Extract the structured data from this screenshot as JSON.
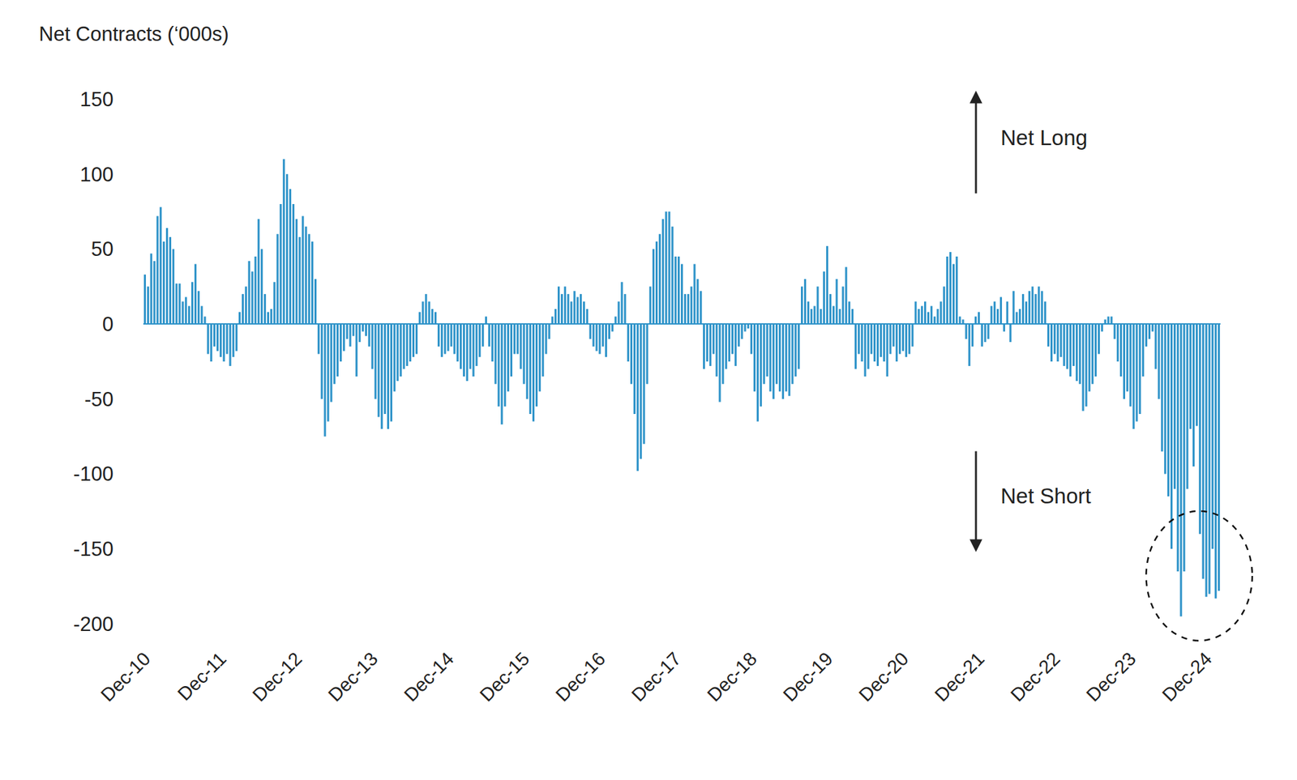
{
  "chart_data": {
    "type": "bar",
    "ylabel": "Net Contracts (‘000s)",
    "annotations": [
      "Net Long",
      "Net Short"
    ],
    "color": "#2e93c9",
    "grid": false,
    "ylim": [
      -200,
      150
    ],
    "yticks": [
      -200,
      -150,
      -100,
      -50,
      0,
      50,
      100,
      150
    ],
    "categories": [
      "Dec-10",
      null,
      null,
      null,
      null,
      null,
      null,
      null,
      null,
      null,
      null,
      null,
      null,
      null,
      null,
      null,
      null,
      null,
      null,
      null,
      null,
      null,
      null,
      null,
      "Dec-11",
      null,
      null,
      null,
      null,
      null,
      null,
      null,
      null,
      null,
      null,
      null,
      null,
      null,
      null,
      null,
      null,
      null,
      null,
      null,
      null,
      null,
      null,
      null,
      "Dec-12",
      null,
      null,
      null,
      null,
      null,
      null,
      null,
      null,
      null,
      null,
      null,
      null,
      null,
      null,
      null,
      null,
      null,
      null,
      null,
      null,
      null,
      null,
      null,
      "Dec-13",
      null,
      null,
      null,
      null,
      null,
      null,
      null,
      null,
      null,
      null,
      null,
      null,
      null,
      null,
      null,
      null,
      null,
      null,
      null,
      null,
      null,
      null,
      null,
      "Dec-14",
      null,
      null,
      null,
      null,
      null,
      null,
      null,
      null,
      null,
      null,
      null,
      null,
      null,
      null,
      null,
      null,
      null,
      null,
      null,
      null,
      null,
      null,
      null,
      "Dec-15",
      null,
      null,
      null,
      null,
      null,
      null,
      null,
      null,
      null,
      null,
      null,
      null,
      null,
      null,
      null,
      null,
      null,
      null,
      null,
      null,
      null,
      null,
      null,
      "Dec-16",
      null,
      null,
      null,
      null,
      null,
      null,
      null,
      null,
      null,
      null,
      null,
      null,
      null,
      null,
      null,
      null,
      null,
      null,
      null,
      null,
      null,
      null,
      null,
      "Dec-17",
      null,
      null,
      null,
      null,
      null,
      null,
      null,
      null,
      null,
      null,
      null,
      null,
      null,
      null,
      null,
      null,
      null,
      null,
      null,
      null,
      null,
      null,
      null,
      "Dec-18",
      null,
      null,
      null,
      null,
      null,
      null,
      null,
      null,
      null,
      null,
      null,
      null,
      null,
      null,
      null,
      null,
      null,
      null,
      null,
      null,
      null,
      null,
      null,
      "Dec-19",
      null,
      null,
      null,
      null,
      null,
      null,
      null,
      null,
      null,
      null,
      null,
      null,
      null,
      null,
      null,
      null,
      null,
      null,
      null,
      null,
      null,
      null,
      null,
      "Dec-20",
      null,
      null,
      null,
      null,
      null,
      null,
      null,
      null,
      null,
      null,
      null,
      null,
      null,
      null,
      null,
      null,
      null,
      null,
      null,
      null,
      null,
      null,
      null,
      "Dec-21",
      null,
      null,
      null,
      null,
      null,
      null,
      null,
      null,
      null,
      null,
      null,
      null,
      null,
      null,
      null,
      null,
      null,
      null,
      null,
      null,
      null,
      null,
      null,
      "Dec-22",
      null,
      null,
      null,
      null,
      null,
      null,
      null,
      null,
      null,
      null,
      null,
      null,
      null,
      null,
      null,
      null,
      null,
      null,
      null,
      null,
      null,
      null,
      null,
      "Dec-23",
      null,
      null,
      null,
      null,
      null,
      null,
      null,
      null,
      null,
      null,
      null,
      null,
      null,
      null,
      null,
      null,
      null,
      null,
      null,
      null,
      null,
      null,
      null,
      "Dec-24",
      null,
      null,
      null,
      null
    ],
    "values": [
      33,
      25,
      47,
      42,
      72,
      78,
      55,
      64,
      58,
      50,
      27,
      27,
      15,
      18,
      12,
      28,
      40,
      22,
      12,
      5,
      -20,
      -25,
      -15,
      -18,
      -22,
      -25,
      -20,
      -28,
      -22,
      -18,
      8,
      20,
      25,
      42,
      35,
      45,
      70,
      50,
      20,
      8,
      10,
      28,
      60,
      80,
      110,
      100,
      90,
      80,
      70,
      58,
      72,
      65,
      60,
      55,
      30,
      -20,
      -50,
      -75,
      -65,
      -52,
      -40,
      -35,
      -25,
      -18,
      -10,
      -15,
      -8,
      -35,
      -12,
      -5,
      -8,
      -15,
      -30,
      -50,
      -62,
      -70,
      -60,
      -70,
      -65,
      -45,
      -38,
      -35,
      -30,
      -28,
      -25,
      -22,
      -20,
      8,
      15,
      20,
      15,
      10,
      8,
      -15,
      -22,
      -20,
      -18,
      -15,
      -20,
      -25,
      -30,
      -35,
      -38,
      -30,
      -35,
      -28,
      -22,
      -15,
      5,
      -15,
      -25,
      -40,
      -55,
      -67,
      -55,
      -45,
      -35,
      -20,
      -20,
      -30,
      -40,
      -50,
      -60,
      -65,
      -55,
      -45,
      -35,
      -20,
      -10,
      5,
      10,
      25,
      20,
      25,
      20,
      15,
      22,
      18,
      20,
      15,
      10,
      -10,
      -15,
      -18,
      -20,
      -15,
      -22,
      -10,
      -5,
      5,
      15,
      28,
      20,
      -25,
      -40,
      -60,
      -98,
      -90,
      -80,
      -40,
      25,
      50,
      55,
      60,
      70,
      75,
      75,
      65,
      45,
      45,
      40,
      20,
      20,
      25,
      40,
      30,
      22,
      -30,
      -25,
      -28,
      -20,
      -35,
      -52,
      -40,
      -30,
      -25,
      -20,
      -28,
      -15,
      -10,
      -5,
      -3,
      -20,
      -45,
      -65,
      -55,
      -40,
      -35,
      -45,
      -50,
      -40,
      -45,
      -50,
      -45,
      -48,
      -40,
      -35,
      -30,
      25,
      30,
      15,
      10,
      12,
      25,
      10,
      35,
      52,
      20,
      12,
      30,
      10,
      25,
      38,
      15,
      10,
      -30,
      -20,
      -25,
      -35,
      -30,
      -20,
      -25,
      -28,
      -22,
      -25,
      -35,
      -20,
      -15,
      -25,
      -20,
      -18,
      -22,
      -20,
      -15,
      15,
      10,
      12,
      15,
      8,
      12,
      5,
      10,
      15,
      25,
      45,
      48,
      40,
      45,
      5,
      3,
      -10,
      -28,
      -15,
      5,
      8,
      -15,
      -12,
      -10,
      12,
      15,
      10,
      18,
      -5,
      15,
      -12,
      22,
      8,
      10,
      20,
      15,
      22,
      25,
      20,
      25,
      22,
      15,
      -15,
      -25,
      -20,
      -25,
      -22,
      -28,
      -30,
      -35,
      -28,
      -38,
      -40,
      -58,
      -55,
      -45,
      -40,
      -35,
      -20,
      -5,
      3,
      5,
      5,
      -10,
      -25,
      -35,
      -50,
      -45,
      -55,
      -70,
      -65,
      -60,
      -35,
      -15,
      -10,
      -5,
      -30,
      -50,
      -85,
      -100,
      -115,
      -150,
      -110,
      -165,
      -195,
      -165,
      -110,
      -70,
      -95,
      -68,
      -140,
      -170,
      -182,
      -180,
      -150,
      -183,
      -178
    ]
  }
}
